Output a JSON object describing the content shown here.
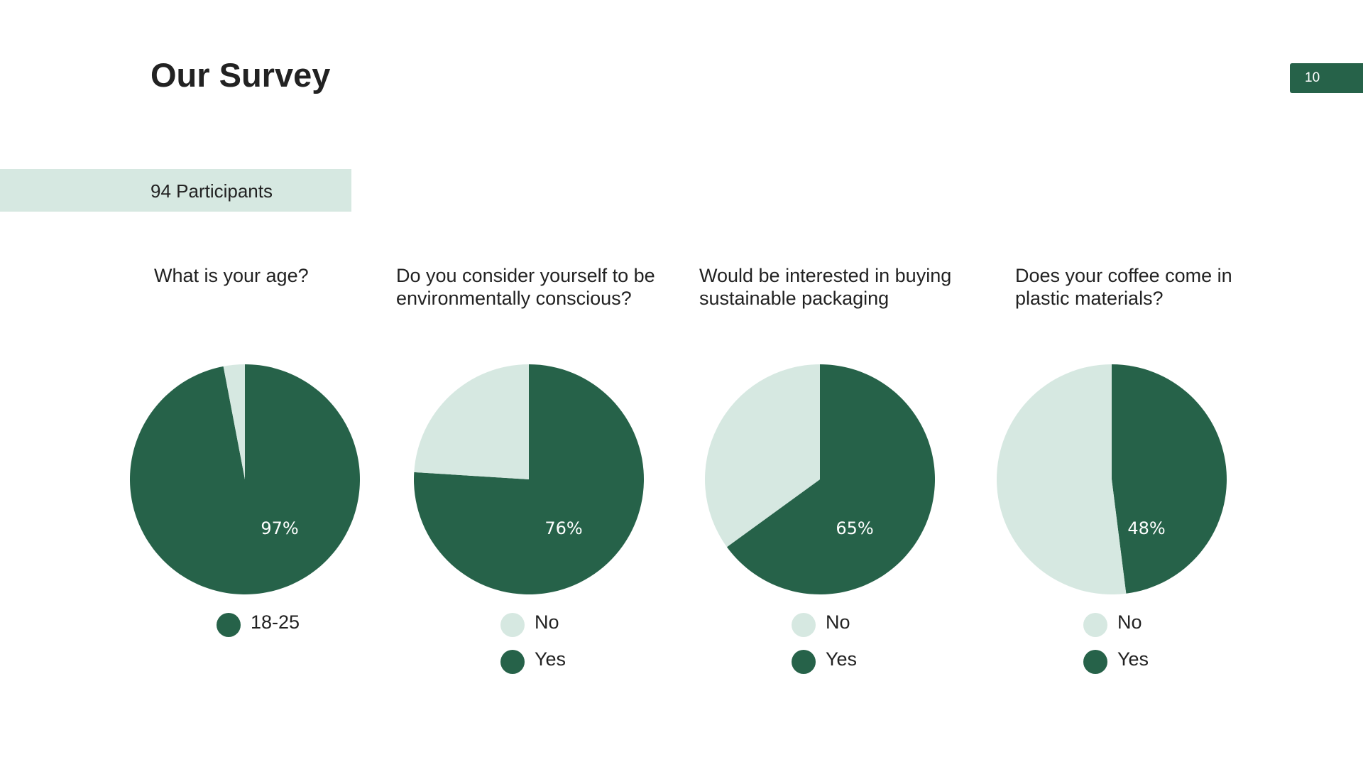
{
  "header": {
    "title": "Our Survey",
    "page_number": "10",
    "participants": "94 Participants"
  },
  "chart_data": [
    {
      "type": "pie",
      "title": "What is your age?",
      "categories": [
        null,
        "18-25"
      ],
      "values": [
        3,
        97
      ],
      "value_labels": [
        null,
        "97%"
      ],
      "colors": [
        "#d6e8e1",
        "#266249"
      ]
    },
    {
      "type": "pie",
      "title": "Do you consider yourself to be environmentally conscious?",
      "categories": [
        "No",
        "Yes"
      ],
      "values": [
        24,
        76
      ],
      "value_labels": [
        null,
        "76%"
      ],
      "colors": [
        "#d6e8e1",
        "#266249"
      ]
    },
    {
      "type": "pie",
      "title": "Would be interested in buying sustainable packaging",
      "categories": [
        "No",
        "Yes"
      ],
      "values": [
        35,
        65
      ],
      "value_labels": [
        null,
        "65%"
      ],
      "colors": [
        "#d6e8e1",
        "#266249"
      ]
    },
    {
      "type": "pie",
      "title": "Does your coffee come in plastic materials?",
      "categories": [
        "No",
        "Yes"
      ],
      "values": [
        52,
        48
      ],
      "value_labels": [
        null,
        "48%"
      ],
      "colors": [
        "#d6e8e1",
        "#266249"
      ]
    }
  ]
}
